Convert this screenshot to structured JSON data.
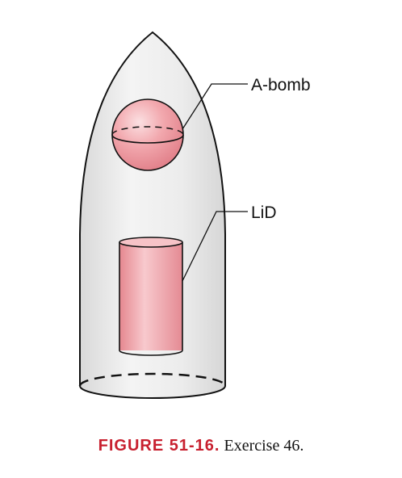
{
  "labels": {
    "abomb": "A-bomb",
    "lid": "LiD"
  },
  "caption": {
    "label": "FIGURE 51-16.",
    "text": "Exercise 46."
  },
  "colors": {
    "accent": "#c8202f",
    "casing_fill": "#ececec",
    "outline": "#111111",
    "pink": "#ef9aa1"
  }
}
